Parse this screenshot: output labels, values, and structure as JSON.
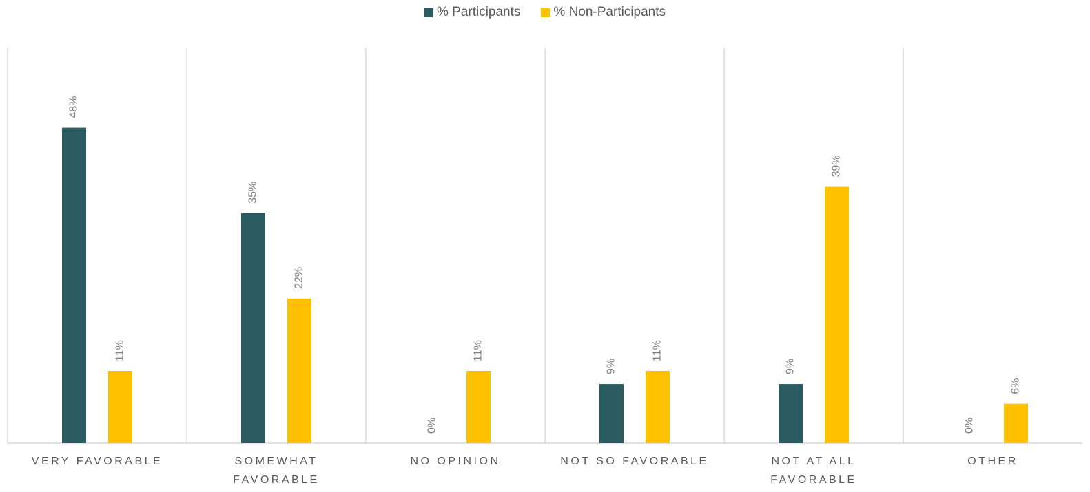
{
  "chart_data": {
    "type": "bar",
    "categories": [
      "VERY FAVORABLE",
      "SOMEWHAT FAVORABLE",
      "NO OPINION",
      "NOT SO FAVORABLE",
      "NOT AT ALL FAVORABLE",
      "OTHER"
    ],
    "series": [
      {
        "name": "% Participants",
        "color": "#2a5b60",
        "values": [
          48,
          35,
          0,
          9,
          9,
          0
        ],
        "value_labels": [
          "48%",
          "35%",
          "0%",
          "9%",
          "9%",
          "0%"
        ]
      },
      {
        "name": "% Non-Participants",
        "color": "#ffc000",
        "values": [
          11,
          22,
          11,
          11,
          39,
          6
        ],
        "value_labels": [
          "11%",
          "22%",
          "11%",
          "11%",
          "39%",
          "6%"
        ]
      }
    ],
    "ylim": [
      0,
      60
    ],
    "legend": "top"
  }
}
